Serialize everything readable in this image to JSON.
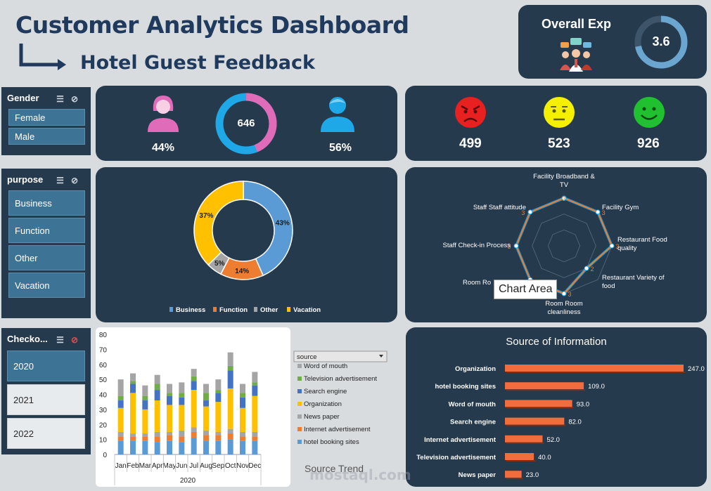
{
  "header": {
    "title": "Customer Analytics Dashboard",
    "subtitle": "Hotel Guest Feedback"
  },
  "overall": {
    "label": "Overall Exp",
    "score": "3.6",
    "score_value": 3.6,
    "score_max": 5
  },
  "gender_slicer": {
    "title": "Gender",
    "items": [
      "Female",
      "Male"
    ]
  },
  "purpose_slicer": {
    "title": "purpose",
    "items": [
      "Business",
      "Function",
      "Other",
      "Vacation"
    ]
  },
  "checkout_slicer": {
    "title": "Checko...",
    "items": [
      "2020",
      "2021",
      "2022"
    ],
    "selected": "2020"
  },
  "gender_stats": {
    "female_pct": "44%",
    "total": "646",
    "male_pct": "56%",
    "female_share": 0.44
  },
  "sentiment": {
    "negative": "499",
    "neutral": "523",
    "positive": "926"
  },
  "colors": {
    "panel": "#263a4d",
    "female": "#e06bb8",
    "male": "#1ea8e8",
    "business": "#5b9bd5",
    "function": "#ed7d31",
    "other": "#a5a5a5",
    "vacation": "#ffc000",
    "bar": "#f26c3d"
  },
  "chart_data": [
    {
      "type": "pie",
      "subtype": "doughnut",
      "categories": [
        "Business",
        "Function",
        "Other",
        "Vacation"
      ],
      "values": [
        43,
        14,
        5,
        37
      ],
      "labels": [
        "43%",
        "14%",
        "5%",
        "37%"
      ],
      "legend": "bottom"
    },
    {
      "type": "radar",
      "categories": [
        "Facility Broadband & TV",
        "Facility Gym",
        "Restaurant Food quality",
        "Restaurant Variety of food",
        "Room Room cleanliness",
        "Room Ro",
        "Staff Check-in Process",
        "Staff Staff attitude"
      ],
      "values": [
        3,
        3,
        3,
        2,
        3,
        3,
        3,
        3
      ],
      "labels": [
        "3",
        "3",
        "3",
        "2",
        "3",
        "",
        "3",
        "3"
      ],
      "range": [
        0,
        3
      ],
      "tooltip": "Chart Area"
    },
    {
      "type": "bar",
      "subtype": "stacked",
      "title": "Source Trend",
      "categories": [
        "Jan",
        "Feb",
        "Mar",
        "Apr",
        "May",
        "Jun",
        "Jul",
        "Aug",
        "Sep",
        "Oct",
        "Nov",
        "Dec"
      ],
      "group_label": "2020",
      "ylim": [
        0,
        80
      ],
      "yticks": [
        "0",
        "10",
        "20",
        "30",
        "40",
        "50",
        "60",
        "70",
        "80"
      ],
      "legend_title": "source",
      "series": [
        {
          "name": "hotel booking sites",
          "color": "#5b9bd5",
          "values": [
            9,
            9,
            9,
            8,
            9,
            8,
            11,
            9,
            9,
            10,
            9,
            9
          ]
        },
        {
          "name": "Internet advertisement",
          "color": "#ed7d31",
          "values": [
            3,
            3,
            3,
            4,
            4,
            4,
            4,
            4,
            4,
            4,
            3,
            3
          ]
        },
        {
          "name": "News paper",
          "color": "#a5a5a5",
          "values": [
            3,
            2,
            2,
            3,
            2,
            4,
            3,
            3,
            2,
            3,
            3,
            3
          ]
        },
        {
          "name": "Organization",
          "color": "#ffc000",
          "values": [
            16,
            27,
            16,
            21,
            18,
            17,
            25,
            16,
            20,
            27,
            16,
            24
          ]
        },
        {
          "name": "Search engine",
          "color": "#4472c4",
          "values": [
            5,
            6,
            6,
            7,
            6,
            5,
            6,
            4,
            6,
            12,
            7,
            7
          ]
        },
        {
          "name": "Television advertisement",
          "color": "#70ad47",
          "values": [
            3,
            2,
            3,
            4,
            2,
            3,
            3,
            5,
            2,
            3,
            3,
            2
          ]
        },
        {
          "name": "Word of mouth",
          "color": "#a5a5a5",
          "values": [
            11,
            5,
            7,
            6,
            6,
            7,
            5,
            6,
            7,
            9,
            6,
            7
          ]
        }
      ]
    },
    {
      "type": "bar",
      "subtype": "horizontal",
      "title": "Source of Information",
      "categories": [
        "Organization",
        "hotel booking sites",
        "Word of mouth",
        "Search engine",
        "Internet advertisement",
        "Television advertisement",
        "News paper"
      ],
      "values": [
        247,
        109,
        93,
        82,
        52,
        40,
        23
      ],
      "labels": [
        "247.0",
        "109.0",
        "93.0",
        "82.0",
        "52.0",
        "40.0",
        "23.0"
      ]
    }
  ],
  "watermark": "mostaql.com"
}
